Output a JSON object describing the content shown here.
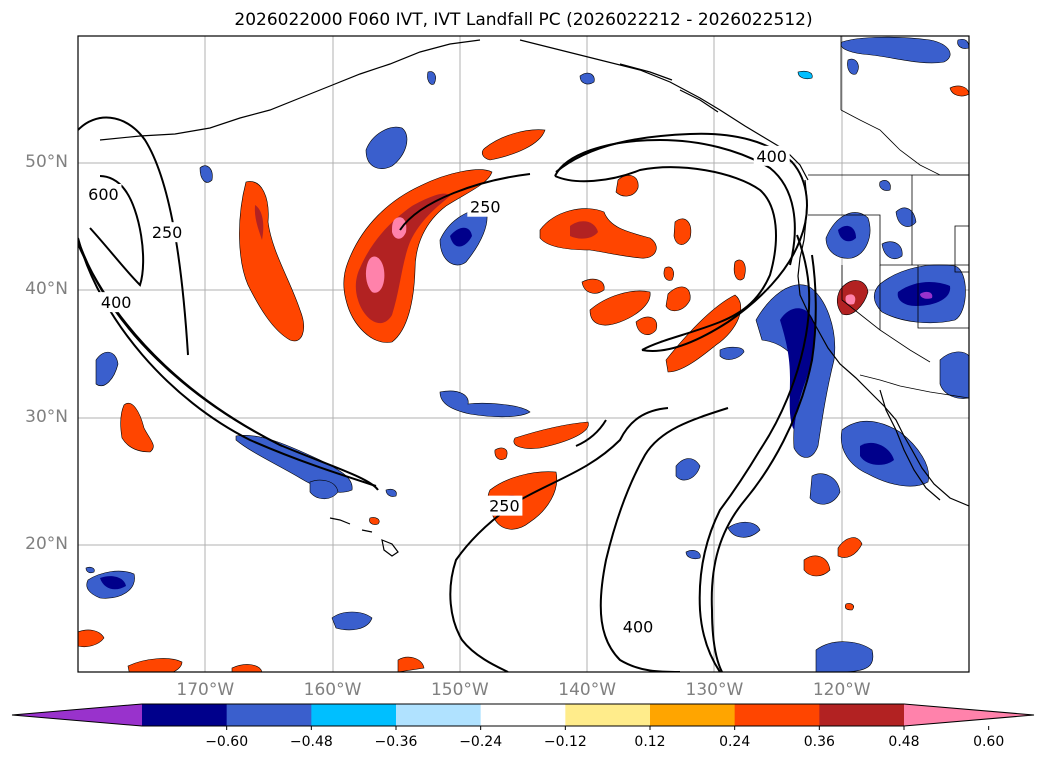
{
  "title": "2026022000 F060 IVT, IVT Landfall PC (2026022212 - 2026022512)",
  "map": {
    "lat_labels": [
      {
        "text": "50°N",
        "lat": 50
      },
      {
        "text": "40°N",
        "lat": 40
      },
      {
        "text": "30°N",
        "lat": 30
      },
      {
        "text": "20°N",
        "lat": 20
      }
    ],
    "lon_labels": [
      {
        "text": "170°W",
        "lon": -170
      },
      {
        "text": "160°W",
        "lon": -160
      },
      {
        "text": "150°W",
        "lon": -150
      },
      {
        "text": "140°W",
        "lon": -140
      },
      {
        "text": "130°W",
        "lon": -130
      },
      {
        "text": "120°W",
        "lon": -120
      }
    ],
    "lon_range": [
      -180,
      -110
    ],
    "lat_range": [
      10,
      60
    ],
    "gridlines": true,
    "contour_labels": [
      {
        "text": "600",
        "lon": -178,
        "lat": 47.5
      },
      {
        "text": "250",
        "lon": -173,
        "lat": 44.5
      },
      {
        "text": "400",
        "lon": -177,
        "lat": 39
      },
      {
        "text": "250",
        "lon": -148,
        "lat": 46.5
      },
      {
        "text": "400",
        "lon": -125.5,
        "lat": 50.5
      },
      {
        "text": "250",
        "lon": -146.5,
        "lat": 23
      },
      {
        "text": "400",
        "lon": -136,
        "lat": 13.5
      }
    ]
  },
  "colorbar": {
    "colors": [
      "#9932cc",
      "#00008b",
      "#3a5fcd",
      "#00bfff",
      "#b0e2ff",
      "#ffffff",
      "#ffec8b",
      "#ffa500",
      "#ff4500",
      "#b22222",
      "#ff82ab"
    ],
    "ticks": [
      "−0.60",
      "−0.48",
      "−0.36",
      "−0.24",
      "−0.12",
      "0.12",
      "0.24",
      "0.36",
      "0.48",
      "0.60"
    ]
  }
}
